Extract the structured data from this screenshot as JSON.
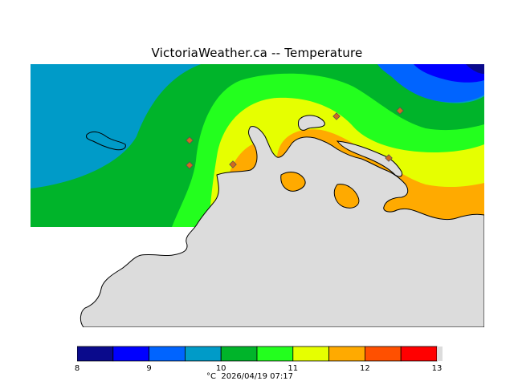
{
  "title": "VictoriaWeather.ca  --  Temperature",
  "legend": {
    "ticks": [
      "8",
      "9",
      "10",
      "11",
      "12",
      "13"
    ],
    "unit": "°C",
    "timestamp": "2026/04/19 07:17",
    "colors": [
      "#0a0a8c",
      "#0000ff",
      "#0064ff",
      "#009bc8",
      "#00b42a",
      "#23ff1e",
      "#e6ff00",
      "#ffaa00",
      "#ff5000",
      "#ff0000"
    ]
  },
  "map": {
    "land_color": "#dcdcdc",
    "coast_color": "#000000",
    "station_marker_color": "#d2691e"
  }
}
